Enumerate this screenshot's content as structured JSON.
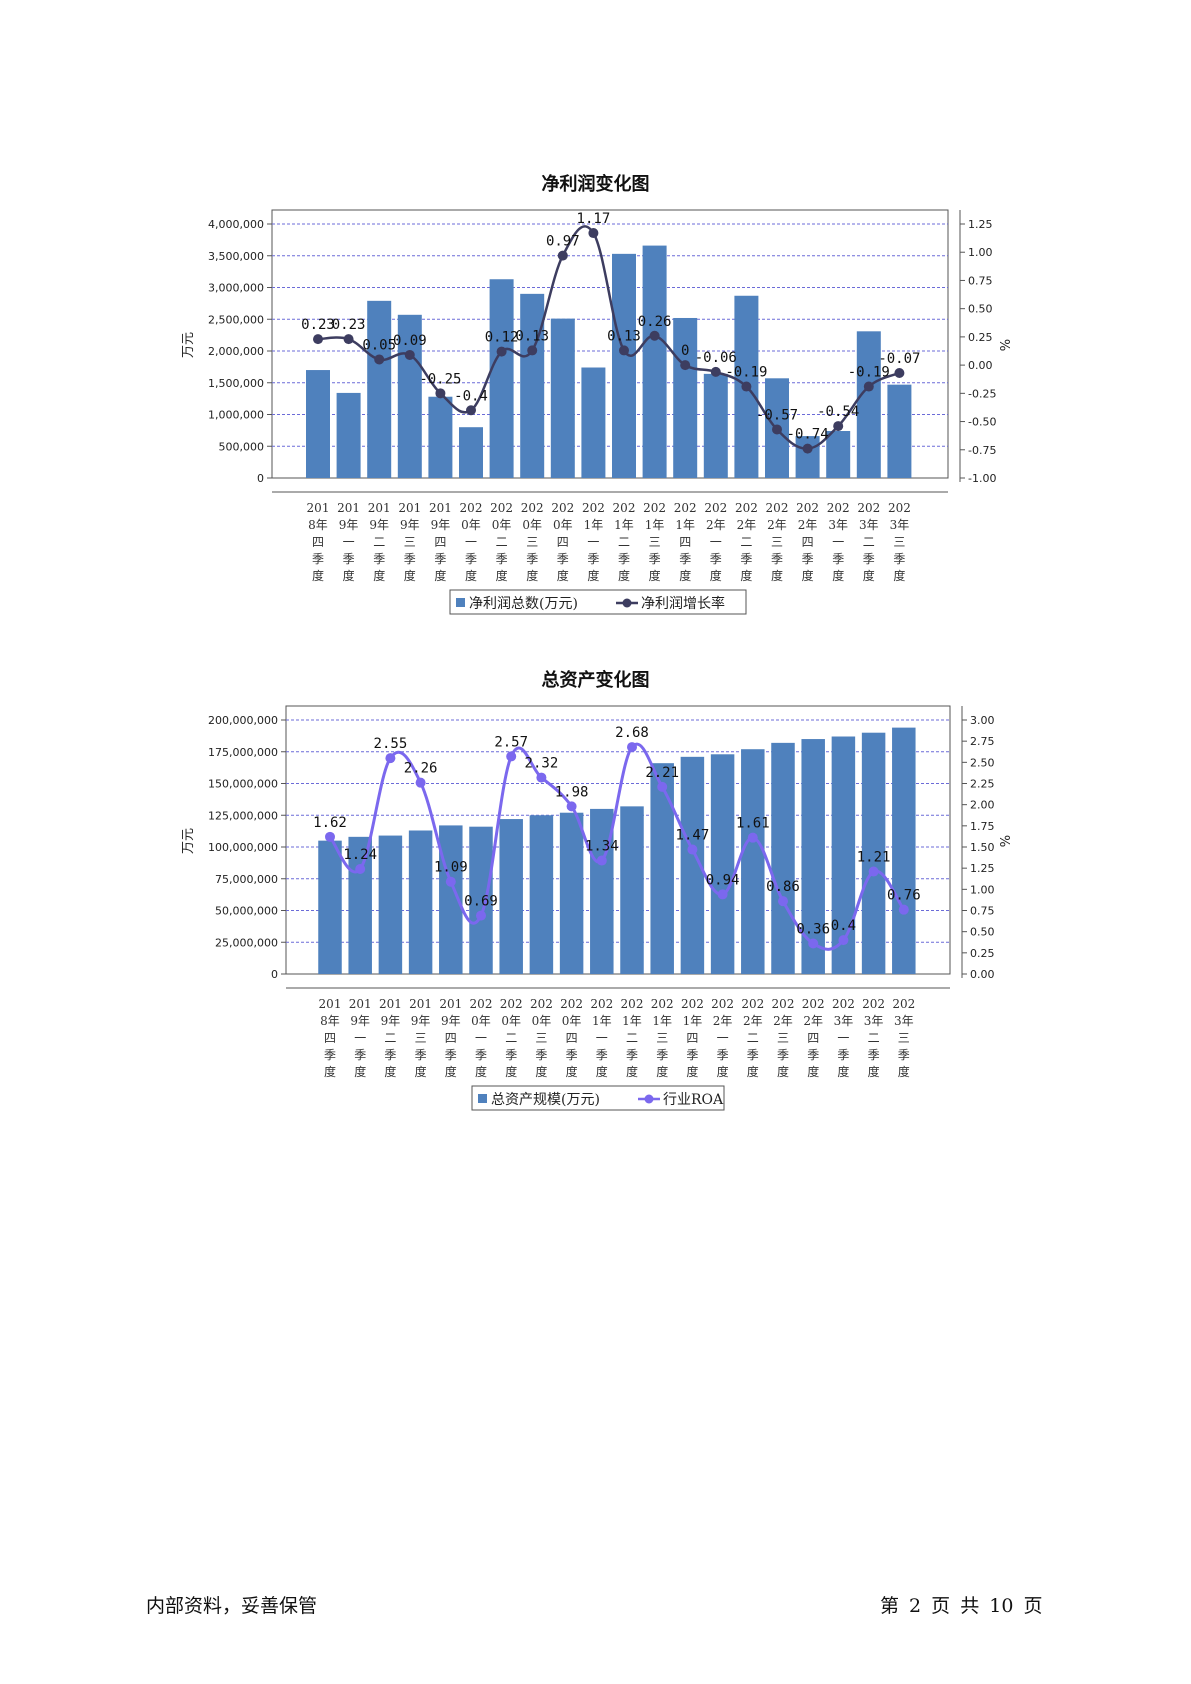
{
  "charts": [
    {
      "title": "净利润变化图",
      "y_left_label": "万元",
      "y_right_label": "%",
      "y_left_ticks": [
        "0",
        "500,000",
        "1,000,000",
        "1,500,000",
        "2,000,000",
        "2,500,000",
        "3,000,000",
        "3,500,000",
        "4,000,000"
      ],
      "y_right_ticks": [
        "-1.00",
        "-0.75",
        "-0.50",
        "-0.25",
        "0.00",
        "0.25",
        "0.50",
        "0.75",
        "1.00",
        "1.25"
      ],
      "legend": [
        "净利润总数(万元)",
        "净利润增长率"
      ],
      "colors": {
        "bar": "#4f81bd",
        "line": "#3d3d60",
        "grid": "#6b6bd8"
      }
    },
    {
      "title": "总资产变化图",
      "y_left_label": "万元",
      "y_right_label": "%",
      "y_left_ticks": [
        "0",
        "25,000,000",
        "50,000,000",
        "75,000,000",
        "100,000,000",
        "125,000,000",
        "150,000,000",
        "175,000,000",
        "200,000,000"
      ],
      "y_right_ticks": [
        "0.00",
        "0.25",
        "0.50",
        "0.75",
        "1.00",
        "1.25",
        "1.50",
        "1.75",
        "2.00",
        "2.25",
        "2.50",
        "2.75",
        "3.00"
      ],
      "legend": [
        "总资产规模(万元)",
        "行业ROA"
      ],
      "colors": {
        "bar": "#4f81bd",
        "line": "#7b68ee",
        "grid": "#6b6bd8"
      }
    }
  ],
  "chart_data": [
    {
      "type": "bar",
      "title": "净利润变化图",
      "categories": [
        "2018年四季度",
        "2019年一季度",
        "2019年二季度",
        "2019年三季度",
        "2019年四季度",
        "2020年一季度",
        "2020年二季度",
        "2020年三季度",
        "2020年四季度",
        "2021年一季度",
        "2021年二季度",
        "2021年三季度",
        "2021年四季度",
        "2022年一季度",
        "2022年二季度",
        "2022年三季度",
        "2022年四季度",
        "2023年一季度",
        "2023年二季度",
        "2023年三季度"
      ],
      "series": [
        {
          "name": "净利润总数(万元)",
          "axis": "left",
          "type": "bar",
          "values": [
            1700000,
            1340000,
            2790000,
            2570000,
            1280000,
            800000,
            3130000,
            2900000,
            2510000,
            1740000,
            3530000,
            3660000,
            2520000,
            1640000,
            2870000,
            1570000,
            660000,
            740000,
            2310000,
            1470000
          ]
        },
        {
          "name": "净利润增长率",
          "axis": "right",
          "type": "line",
          "values": [
            0.23,
            0.23,
            0.05,
            0.09,
            -0.25,
            -0.4,
            0.12,
            0.13,
            0.97,
            1.17,
            0.13,
            0.26,
            0,
            -0.06,
            -0.19,
            -0.57,
            -0.74,
            -0.54,
            -0.19,
            -0.07
          ],
          "labels": [
            "0.23",
            "0.23",
            "0.05",
            "0.09",
            "-0.25",
            "-0.4",
            "0.12",
            "0.13",
            "0.97",
            "1.17",
            "0.13",
            "0.26",
            "0",
            "-0.06",
            "-0.19",
            "-0.57",
            "-0.74",
            "-0.54",
            "-0.19",
            "-0.07"
          ]
        }
      ],
      "ylim_left": [
        0,
        4000000
      ],
      "ylim_right": [
        -1.0,
        1.25
      ],
      "ylabel": "万元",
      "ylabel_right": "%",
      "grid": true,
      "legend_position": "bottom"
    },
    {
      "type": "bar",
      "title": "总资产变化图",
      "categories": [
        "2018年四季度",
        "2019年一季度",
        "2019年二季度",
        "2019年三季度",
        "2019年四季度",
        "2020年一季度",
        "2020年二季度",
        "2020年三季度",
        "2020年四季度",
        "2021年一季度",
        "2021年二季度",
        "2021年三季度",
        "2021年四季度",
        "2022年一季度",
        "2022年二季度",
        "2022年三季度",
        "2022年四季度",
        "2023年一季度",
        "2023年二季度",
        "2023年三季度"
      ],
      "series": [
        {
          "name": "总资产规模(万元)",
          "axis": "left",
          "type": "bar",
          "values": [
            105000000,
            108000000,
            109000000,
            113000000,
            117000000,
            116000000,
            122000000,
            125000000,
            127000000,
            130000000,
            132000000,
            166000000,
            171000000,
            173000000,
            177000000,
            182000000,
            185000000,
            187000000,
            190000000,
            194000000
          ]
        },
        {
          "name": "行业ROA",
          "axis": "right",
          "type": "line",
          "values": [
            1.62,
            1.24,
            2.55,
            2.26,
            1.09,
            0.69,
            2.57,
            2.32,
            1.98,
            1.34,
            2.68,
            2.21,
            1.47,
            0.94,
            1.61,
            0.86,
            0.36,
            0.4,
            1.21,
            0.76
          ],
          "labels": [
            "1.62",
            "1.24",
            "2.55",
            "2.26",
            "1.09",
            "0.69",
            "2.57",
            "2.32",
            "1.98",
            "1.34",
            "2.68",
            "2.21",
            "1.47",
            "0.94",
            "1.61",
            "0.86",
            "0.36",
            "0.4",
            "1.21",
            "0.76"
          ]
        }
      ],
      "ylim_left": [
        0,
        200000000
      ],
      "ylim_right": [
        0,
        3.0
      ],
      "ylabel": "万元",
      "ylabel_right": "%",
      "grid": true,
      "legend_position": "bottom"
    }
  ],
  "footer": {
    "left": "内部资料，妥善保管",
    "right": "第 2 页   共 10 页"
  }
}
